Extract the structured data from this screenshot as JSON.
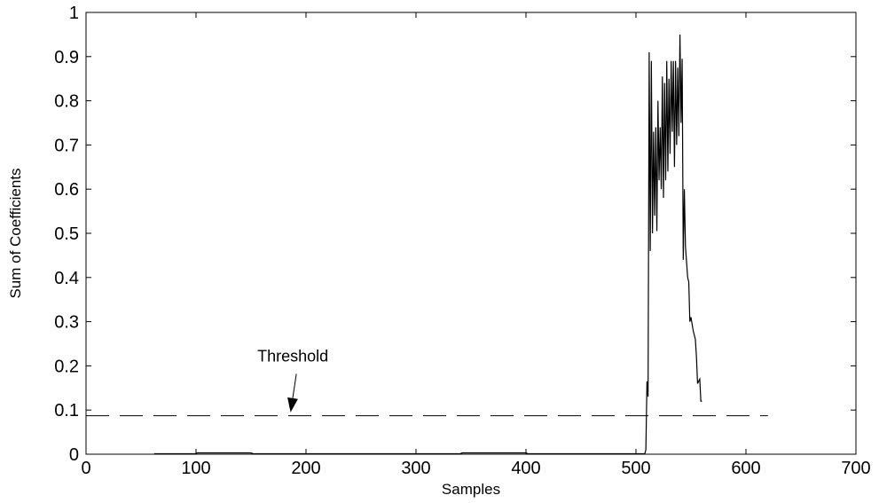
{
  "chart_data": {
    "type": "line",
    "title": "",
    "xlabel": "Samples",
    "ylabel": "Sum of Coefficients",
    "xlim": [
      0,
      700
    ],
    "ylim": [
      0,
      1
    ],
    "grid": false,
    "x_ticks": [
      0,
      100,
      200,
      300,
      400,
      500,
      600,
      700
    ],
    "y_ticks": [
      0,
      0.1,
      0.2,
      0.3,
      0.4,
      0.5,
      0.6,
      0.7,
      0.8,
      0.9,
      1
    ],
    "x_tick_labels": [
      "0",
      "100",
      "200",
      "300",
      "400",
      "500",
      "600",
      "700"
    ],
    "y_tick_labels": [
      "0",
      "0.1",
      "0.2",
      "0.3",
      "0.4",
      "0.5",
      "0.6",
      "0.7",
      "0.8",
      "0.9",
      "1"
    ],
    "threshold": {
      "label": "Threshold",
      "value": 0.087,
      "x_range": [
        0,
        620
      ],
      "style": "dashed",
      "arrow_from": [
        188,
        0.19
      ],
      "arrow_to": [
        186,
        0.095
      ]
    },
    "series": [
      {
        "color": "#000000",
        "style": "solid",
        "points": [
          [
            62,
            0.001
          ],
          [
            100,
            0.001
          ],
          [
            101,
            0.003
          ],
          [
            150,
            0.003
          ],
          [
            152,
            0.001
          ],
          [
            340,
            0.001
          ],
          [
            342,
            0.003
          ],
          [
            400,
            0.003
          ],
          [
            402,
            0.001
          ],
          [
            508,
            0.001
          ],
          [
            509,
            0.01
          ],
          [
            510,
            0.165
          ],
          [
            511,
            0.13
          ],
          [
            512,
            0.91
          ],
          [
            513,
            0.46
          ],
          [
            514,
            0.89
          ],
          [
            515,
            0.5
          ],
          [
            516,
            0.73
          ],
          [
            517,
            0.54
          ],
          [
            518,
            0.74
          ],
          [
            519,
            0.505
          ],
          [
            520,
            0.8
          ],
          [
            521,
            0.62
          ],
          [
            522,
            0.74
          ],
          [
            523,
            0.6
          ],
          [
            524,
            0.855
          ],
          [
            525,
            0.58
          ],
          [
            526,
            0.84
          ],
          [
            527,
            0.62
          ],
          [
            528,
            0.89
          ],
          [
            529,
            0.64
          ],
          [
            530,
            0.85
          ],
          [
            531,
            0.68
          ],
          [
            532,
            0.89
          ],
          [
            533,
            0.73
          ],
          [
            534,
            0.89
          ],
          [
            535,
            0.65
          ],
          [
            536,
            0.89
          ],
          [
            537,
            0.7
          ],
          [
            538,
            0.875
          ],
          [
            539,
            0.72
          ],
          [
            540,
            0.95
          ],
          [
            541,
            0.75
          ],
          [
            542,
            0.895
          ],
          [
            543,
            0.44
          ],
          [
            544,
            0.6
          ],
          [
            545,
            0.47
          ],
          [
            547,
            0.4
          ],
          [
            548,
            0.39
          ],
          [
            549,
            0.3
          ],
          [
            550,
            0.31
          ],
          [
            552,
            0.28
          ],
          [
            554,
            0.26
          ],
          [
            555,
            0.22
          ],
          [
            556,
            0.16
          ],
          [
            558,
            0.17
          ],
          [
            559,
            0.12
          ],
          [
            560,
            0.12
          ]
        ]
      }
    ]
  }
}
